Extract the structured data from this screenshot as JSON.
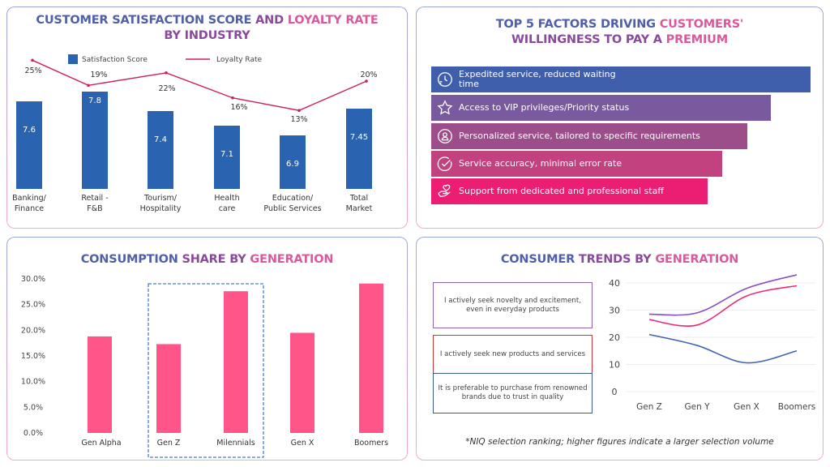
{
  "panels": {
    "satisfaction": {
      "title_parts": [
        {
          "text": "CUSTOMER SATISFACTION SCORE ",
          "tone": "blue"
        },
        {
          "text": "AND ",
          "tone": "purple"
        },
        {
          "text": "LOYALTY RATE",
          "tone": "pink"
        }
      ],
      "title_line2": "BY INDUSTRY"
    },
    "factors": {
      "title_line1_parts": [
        {
          "text": "TOP 5 FACTORS DRIVING ",
          "tone": "blue"
        },
        {
          "text": "CUSTOMERS'",
          "tone": "pink"
        }
      ],
      "title_line2_parts": [
        {
          "text": "WILLINGNESS TO PAY A ",
          "tone": "purple"
        },
        {
          "text": "PREMIUM",
          "tone": "pink"
        }
      ],
      "items": [
        {
          "label": "Expedited service, reduced waiting time",
          "icon": "clock-icon",
          "color": "#3f5fac",
          "rank": 1
        },
        {
          "label": "Access to VIP privileges/Priority status",
          "icon": "star-icon",
          "color": "#7a5a9e",
          "rank": 2
        },
        {
          "label": "Personalized service, tailored to specific requirements",
          "icon": "user-circle-icon",
          "color": "#9c4e8a",
          "rank": 3
        },
        {
          "label": "Service accuracy, minimal error rate",
          "icon": "check-circle-icon",
          "color": "#c2417f",
          "rank": 4
        },
        {
          "label": "Support from dedicated and professional staff",
          "icon": "heart-hand-icon",
          "color": "#ec1e74",
          "rank": 5
        }
      ]
    },
    "consumption": {
      "title_parts": [
        {
          "text": "CONSUMPTION ",
          "tone": "blue"
        },
        {
          "text": "SHARE BY ",
          "tone": "purple"
        },
        {
          "text": "GENERATION",
          "tone": "pink"
        }
      ],
      "highlight_group": [
        "Gen Z",
        "Milennials"
      ]
    },
    "trends": {
      "title_parts": [
        {
          "text": "CONSUMER ",
          "tone": "blue"
        },
        {
          "text": "TRENDS BY ",
          "tone": "purple"
        },
        {
          "text": "GENERATION",
          "tone": "pink"
        }
      ],
      "footnote": "*NIQ selection ranking; higher figures indicate a larger selection volume"
    }
  },
  "chart_data": [
    {
      "id": "satisfaction-loyalty",
      "type": "bar",
      "title": "CUSTOMER SATISFACTION SCORE AND LOYALTY RATE BY INDUSTRY",
      "categories": [
        "Banking/\nFinance",
        "Retail -\nF&B",
        "Tourism/\nHospitality",
        "Health\ncare",
        "Education/\nPublic Services",
        "Total\nMarket"
      ],
      "series": [
        {
          "name": "Satisfaction Score",
          "type": "bar",
          "color": "#2a64b0",
          "values": [
            7.6,
            7.8,
            7.4,
            7.1,
            6.9,
            7.45
          ],
          "labels": [
            "7.6",
            "7.8",
            "7.4",
            "7.1",
            "6.9",
            "7.45"
          ]
        },
        {
          "name": "Loyalty Rate",
          "type": "line",
          "color": "#d01f5e",
          "values": [
            25,
            19,
            22,
            16,
            13,
            20
          ],
          "labels": [
            "25%",
            "19%",
            "22%",
            "16%",
            "13%",
            "20%"
          ]
        }
      ],
      "legend": "top-center",
      "bar_ylim": [
        6.0,
        8.0
      ],
      "line_ylim": [
        8,
        27
      ],
      "grid": false
    },
    {
      "id": "consumption-share",
      "type": "bar",
      "title": "CONSUMPTION SHARE BY GENERATION",
      "categories": [
        "Gen Alpha",
        "Gen Z",
        "Milennials",
        "Gen X",
        "Boomers"
      ],
      "values": [
        18.8,
        17.3,
        27.6,
        19.5,
        29.1
      ],
      "unit": "%",
      "color": "#ff5589",
      "ylim": [
        0,
        30
      ],
      "yticks": [
        "0.0%",
        "5.0%",
        "10.0%",
        "15.0%",
        "20.0%",
        "25.0%",
        "30.0%"
      ],
      "grid": false
    },
    {
      "id": "consumer-trends",
      "type": "line",
      "title": "CONSUMER TRENDS BY GENERATION",
      "categories": [
        "Gen Z",
        "Gen Y",
        "Gen X",
        "Boomers"
      ],
      "series": [
        {
          "name": "I actively seek novelty and excitement, even in everyday products",
          "color": "#8a4fc8",
          "box_color": "#8e63b8",
          "values": [
            28.5,
            29,
            38,
            43
          ]
        },
        {
          "name": "I actively seek new products and services",
          "color": "#f0287a",
          "box_color": "#c6373a",
          "values": [
            26.5,
            24.5,
            35.2,
            39
          ]
        },
        {
          "name": "It is preferable to purchase from renowned brands due to trust in quality",
          "color": "#3f64b4",
          "box_color": "#3a5a9b",
          "values": [
            21,
            17,
            10.6,
            15
          ]
        }
      ],
      "ylim": [
        0,
        40
      ],
      "yticks": [
        "0",
        "10",
        "20",
        "30",
        "40"
      ],
      "grid": true,
      "legend": "left"
    }
  ]
}
